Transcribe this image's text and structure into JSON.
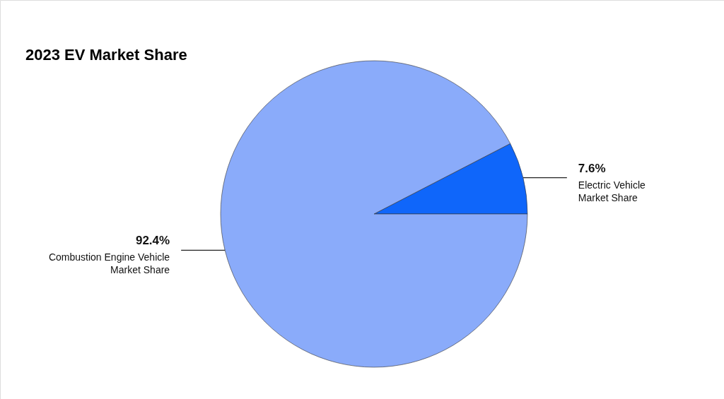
{
  "chart_data": {
    "type": "pie",
    "title": "2023 EV Market Share",
    "categories": [
      "Electric Vehicle\nMarket Share",
      "Combustion Engine Vehicle\nMarket Share"
    ],
    "values": [
      7.6,
      92.4
    ],
    "colors": [
      "#0f66fa",
      "#8aabfa"
    ],
    "value_labels": [
      "7.6%",
      "92.4%"
    ],
    "legend": false
  }
}
